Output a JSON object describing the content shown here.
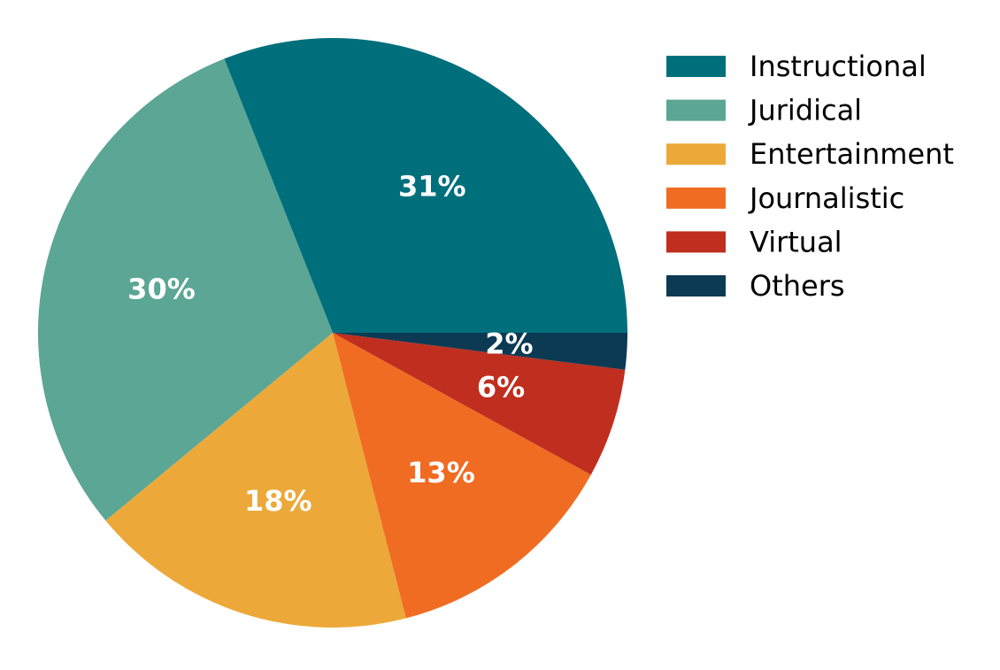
{
  "chart_data": {
    "type": "pie",
    "categories": [
      "Instructional",
      "Juridical",
      "Entertainment",
      "Journalistic",
      "Virtual",
      "Others"
    ],
    "values": [
      31,
      30,
      18,
      13,
      6,
      2
    ],
    "labels": [
      "31%",
      "30%",
      "18%",
      "13%",
      "6%",
      "2%"
    ],
    "colors": [
      "#006f7c",
      "#5ba694",
      "#eca939",
      "#f06c22",
      "#bf2e1f",
      "#0b3a52"
    ],
    "start_angle_deg": 0,
    "direction": "counterclockwise",
    "legend": {
      "position": "top-right",
      "entries": [
        "Instructional",
        "Juridical",
        "Entertainment",
        "Journalistic",
        "Virtual",
        "Others"
      ]
    }
  }
}
